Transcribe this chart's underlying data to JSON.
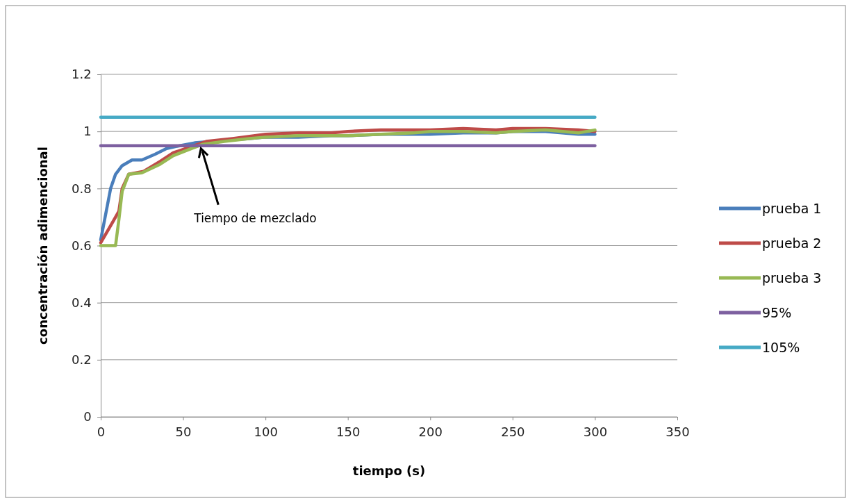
{
  "chart_data": {
    "type": "line",
    "xlabel": "tiempo (s)",
    "ylabel": "concentración adimencional",
    "xlim": [
      0,
      350
    ],
    "xticks": [
      0,
      50,
      100,
      150,
      200,
      250,
      300,
      350
    ],
    "ylim": [
      0,
      1.2
    ],
    "yticks": [
      0,
      0.2,
      0.4,
      0.6,
      0.8,
      1,
      1.2
    ],
    "grid": "y",
    "legend": "right",
    "line_style": "solid",
    "marker": "none",
    "annotations": [
      {
        "text": "Tiempo de mezclado",
        "x": 60,
        "y": 0.95
      }
    ],
    "series": [
      {
        "name": "prueba 1",
        "color": "#4a7ebb",
        "x": [
          0,
          3,
          6,
          9,
          13,
          19,
          25,
          33,
          40,
          48,
          57,
          90,
          100,
          120,
          140,
          150,
          170,
          190,
          200,
          220,
          240,
          250,
          270,
          290,
          300
        ],
        "values": [
          0.62,
          0.71,
          0.8,
          0.85,
          0.88,
          0.9,
          0.9,
          0.92,
          0.94,
          0.95,
          0.96,
          0.975,
          0.98,
          0.98,
          0.985,
          0.985,
          0.99,
          0.99,
          0.99,
          0.995,
          0.995,
          1,
          1,
          0.99,
          0.99
        ]
      },
      {
        "name": "prueba 2",
        "color": "#be4b48",
        "x": [
          0,
          3,
          8,
          11,
          13,
          17,
          26,
          36,
          44,
          54,
          64,
          80,
          100,
          120,
          140,
          150,
          170,
          190,
          200,
          220,
          240,
          250,
          270,
          290,
          300
        ],
        "values": [
          0.61,
          0.64,
          0.69,
          0.72,
          0.8,
          0.85,
          0.86,
          0.895,
          0.925,
          0.945,
          0.965,
          0.975,
          0.99,
          0.995,
          0.995,
          1,
          1.005,
          1.005,
          1.005,
          1.01,
          1.005,
          1.01,
          1.01,
          1.005,
          1
        ]
      },
      {
        "name": "prueba 3",
        "color": "#98b954",
        "x": [
          0,
          5,
          9,
          11,
          13,
          17,
          25,
          36,
          44,
          55,
          62,
          75,
          90,
          100,
          120,
          140,
          150,
          170,
          190,
          200,
          220,
          240,
          250,
          270,
          290,
          300
        ],
        "values": [
          0.6,
          0.6,
          0.6,
          0.69,
          0.79,
          0.85,
          0.855,
          0.885,
          0.915,
          0.94,
          0.955,
          0.965,
          0.975,
          0.98,
          0.985,
          0.985,
          0.985,
          0.99,
          0.995,
          1,
          1,
          0.995,
          1,
          1.005,
          0.995,
          1.005
        ]
      },
      {
        "name": "95%",
        "color": "#7d60a0",
        "x": [
          0,
          300
        ],
        "values": [
          0.95,
          0.95
        ]
      },
      {
        "name": "105%",
        "color": "#46aac5",
        "x": [
          0,
          300
        ],
        "values": [
          1.05,
          1.05
        ]
      }
    ]
  }
}
